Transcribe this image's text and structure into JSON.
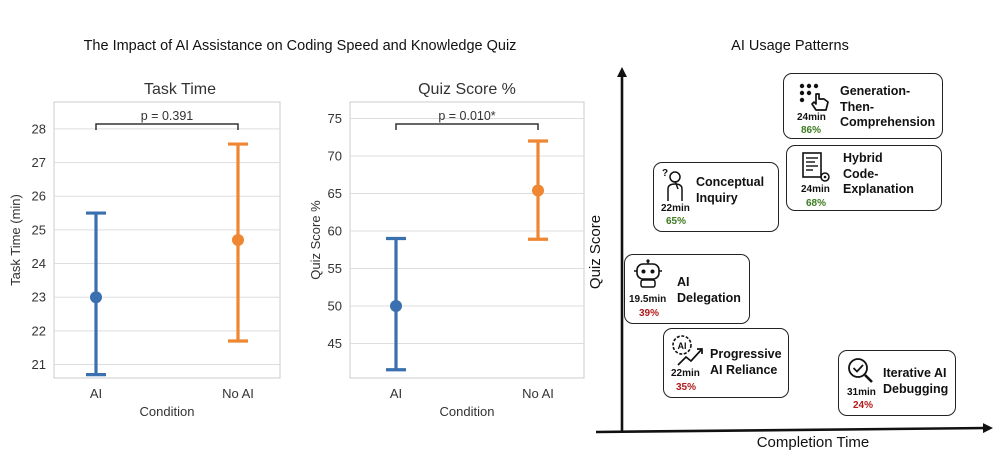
{
  "main_title": "The Impact of AI Assistance on Coding Speed and Knowledge Quiz",
  "right_title": "AI Usage Patterns",
  "colors": {
    "ai": "#3a6fb0",
    "no_ai": "#ef8632",
    "good": "#3d7a1f",
    "bad": "#b01a1a"
  },
  "chart_data": [
    {
      "type": "scatter",
      "title": "Task Time",
      "xlabel": "Condition",
      "ylabel": "Task Time (min)",
      "categories": [
        "AI",
        "No AI"
      ],
      "values": [
        23.0,
        24.7
      ],
      "error_low": [
        20.7,
        21.7
      ],
      "error_high": [
        25.5,
        27.55
      ],
      "ylim": [
        20.6,
        28.8
      ],
      "yticks": [
        21,
        22,
        23,
        24,
        25,
        26,
        27,
        28
      ],
      "grid": true,
      "annotation": "p = 0.391"
    },
    {
      "type": "scatter",
      "title": "Quiz Score %",
      "xlabel": "Condition",
      "ylabel": "Quiz Score %",
      "categories": [
        "AI",
        "No AI"
      ],
      "values": [
        50.0,
        65.4
      ],
      "error_low": [
        41.5,
        58.9
      ],
      "error_high": [
        59.0,
        72.0
      ],
      "ylim": [
        40.4,
        77.2
      ],
      "yticks": [
        45,
        50,
        55,
        60,
        65,
        70,
        75
      ],
      "grid": true,
      "annotation": "p = 0.010*"
    },
    {
      "type": "scatter",
      "title": "AI Usage Patterns",
      "xlabel": "Completion Time",
      "ylabel": "Quiz Score",
      "points": [
        {
          "label": "Generation-\nThen-\nComprehension",
          "time": "24min",
          "score": "86%",
          "quality": "good",
          "icon": "pointer-hand-grid-icon"
        },
        {
          "label": "Hybrid\nCode-\nExplanation",
          "time": "24min",
          "score": "68%",
          "quality": "good",
          "icon": "code-document-icon"
        },
        {
          "label": "Conceptual\nInquiry",
          "time": "22min",
          "score": "65%",
          "quality": "good",
          "icon": "thinking-person-icon"
        },
        {
          "label": "AI\nDelegation",
          "time": "19.5min",
          "score": "39%",
          "quality": "bad",
          "icon": "robot-icon"
        },
        {
          "label": "Progressive\nAI Reliance",
          "time": "22min",
          "score": "35%",
          "quality": "bad",
          "icon": "ai-gear-trend-icon"
        },
        {
          "label": "Iterative AI\nDebugging",
          "time": "31min",
          "score": "24%",
          "quality": "bad",
          "icon": "magnifier-check-icon"
        }
      ]
    }
  ]
}
